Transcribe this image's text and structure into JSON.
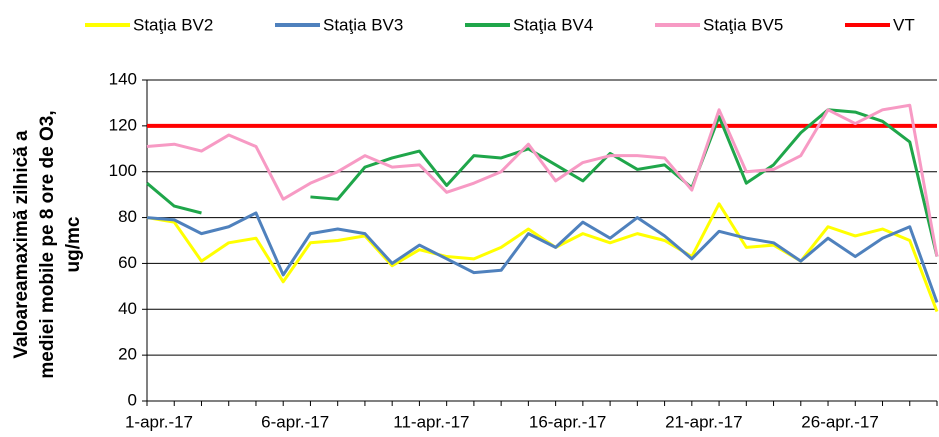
{
  "chart_data": {
    "type": "line",
    "y_label_lines": [
      "Valoareamaximă zilnică a",
      "mediei mobile pe 8 ore de O3,",
      "ug/mc"
    ],
    "categories": [
      "1-apr.-17",
      null,
      null,
      null,
      null,
      "6-apr.-17",
      null,
      null,
      null,
      null,
      "11-apr.-17",
      null,
      null,
      null,
      null,
      "16-apr.-17",
      null,
      null,
      null,
      null,
      "21-apr.-17",
      null,
      null,
      null,
      null,
      "26-apr.-17",
      null,
      null,
      null,
      null
    ],
    "series": [
      {
        "name": "Staţia BV2",
        "color": "#ffff00",
        "values": [
          80,
          78,
          61,
          69,
          71,
          52,
          69,
          70,
          72,
          59,
          66,
          63,
          62,
          67,
          75,
          67,
          73,
          69,
          73,
          70,
          63,
          86,
          67,
          68,
          61,
          76,
          72,
          75,
          70,
          39
        ]
      },
      {
        "name": "Staţia BV3",
        "color": "#4f81bd",
        "values": [
          80,
          79,
          73,
          76,
          82,
          55,
          73,
          75,
          73,
          60,
          68,
          62,
          56,
          57,
          73,
          67,
          78,
          71,
          80,
          72,
          62,
          74,
          71,
          69,
          61,
          71,
          63,
          71,
          76,
          43
        ]
      },
      {
        "name": "Staţia BV4",
        "color": "#1fa64a",
        "values": [
          95,
          85,
          82,
          null,
          null,
          null,
          89,
          88,
          102,
          106,
          109,
          94,
          107,
          106,
          110,
          103,
          96,
          108,
          101,
          103,
          93,
          124,
          95,
          103,
          117,
          127,
          126,
          122,
          113,
          63
        ]
      },
      {
        "name": "Staţia BV5",
        "color": "#f79ac4",
        "values": [
          111,
          112,
          109,
          116,
          111,
          88,
          95,
          100,
          107,
          102,
          103,
          91,
          95,
          100,
          112,
          96,
          104,
          107,
          107,
          106,
          92,
          127,
          100,
          101,
          107,
          127,
          121,
          127,
          129,
          63
        ]
      },
      {
        "name": "VT",
        "color": "#ff0000",
        "values": [
          120,
          120,
          120,
          120,
          120,
          120,
          120,
          120,
          120,
          120,
          120,
          120,
          120,
          120,
          120,
          120,
          120,
          120,
          120,
          120,
          120,
          120,
          120,
          120,
          120,
          120,
          120,
          120,
          120,
          120
        ]
      }
    ],
    "ylim": [
      0,
      140
    ],
    "yticks": [
      0,
      20,
      40,
      60,
      80,
      100,
      120,
      140
    ],
    "grid": true
  }
}
